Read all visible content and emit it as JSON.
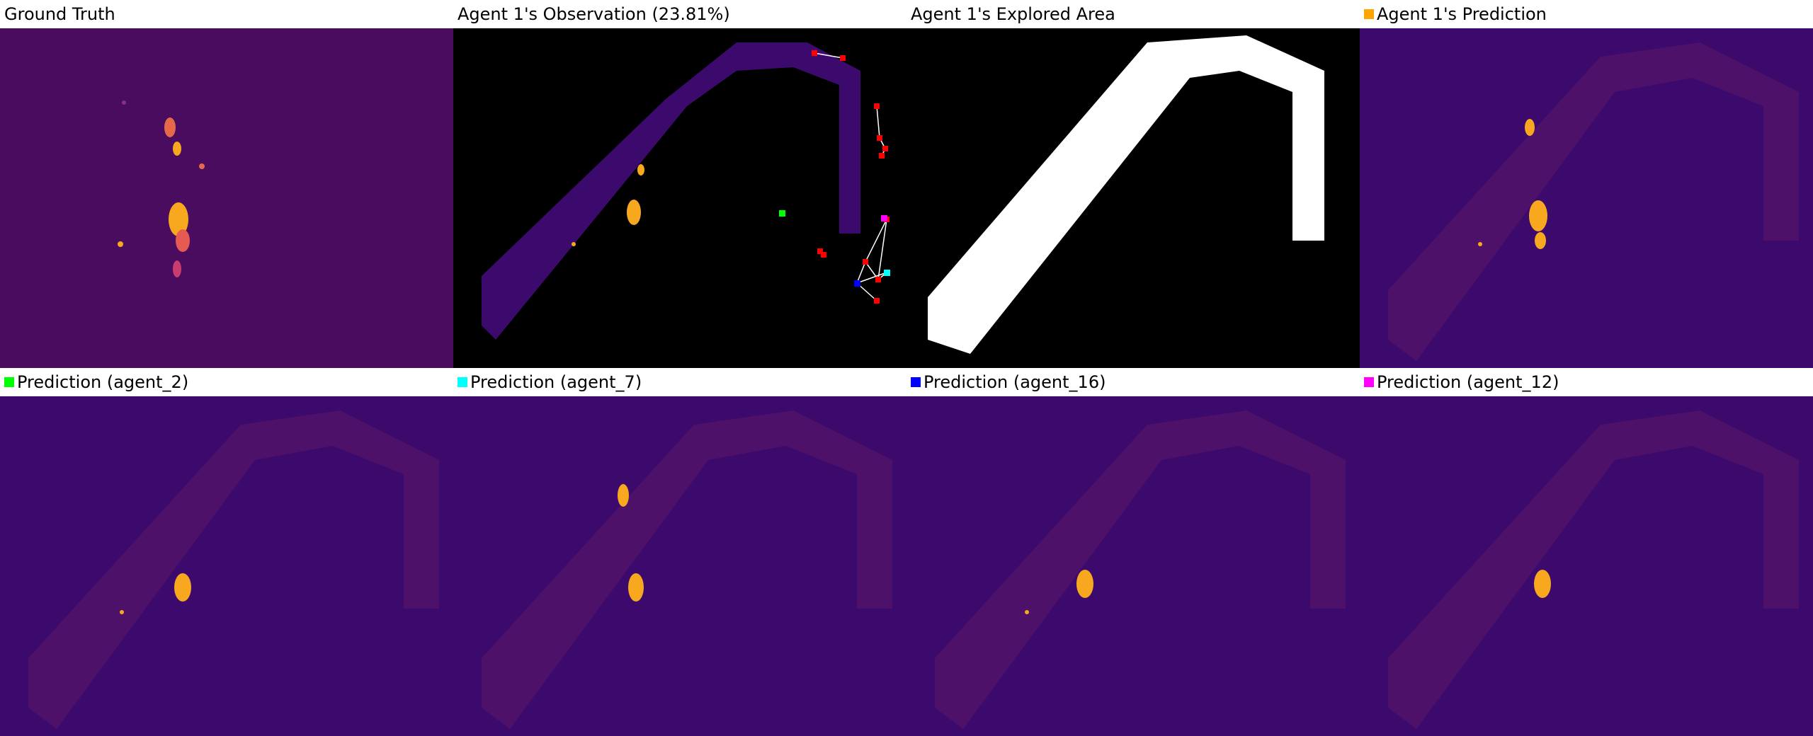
{
  "panels": [
    {
      "title": "Ground Truth",
      "swatch": null
    },
    {
      "title": "Agent 1's Observation (23.81%)",
      "swatch": null
    },
    {
      "title": "Agent 1's Explored Area",
      "swatch": null
    },
    {
      "title": "Agent 1's Prediction",
      "swatch": "#ffa500"
    },
    {
      "title": "Prediction (agent_2)",
      "swatch": "#00ff00"
    },
    {
      "title": "Prediction (agent_7)",
      "swatch": "#00ffff"
    },
    {
      "title": "Prediction (agent_16)",
      "swatch": "#0000ff"
    },
    {
      "title": "Prediction (agent_12)",
      "swatch": "#ff00ff"
    }
  ],
  "colors": {
    "map_background": "#3c0a6c",
    "ground_truth_background": "#4a0c5e",
    "trajectory": "#5a1568",
    "hotspot_core": "#f7a81e",
    "hotspot_edge": "#d5476a",
    "agent_marker": "#ff0000"
  }
}
